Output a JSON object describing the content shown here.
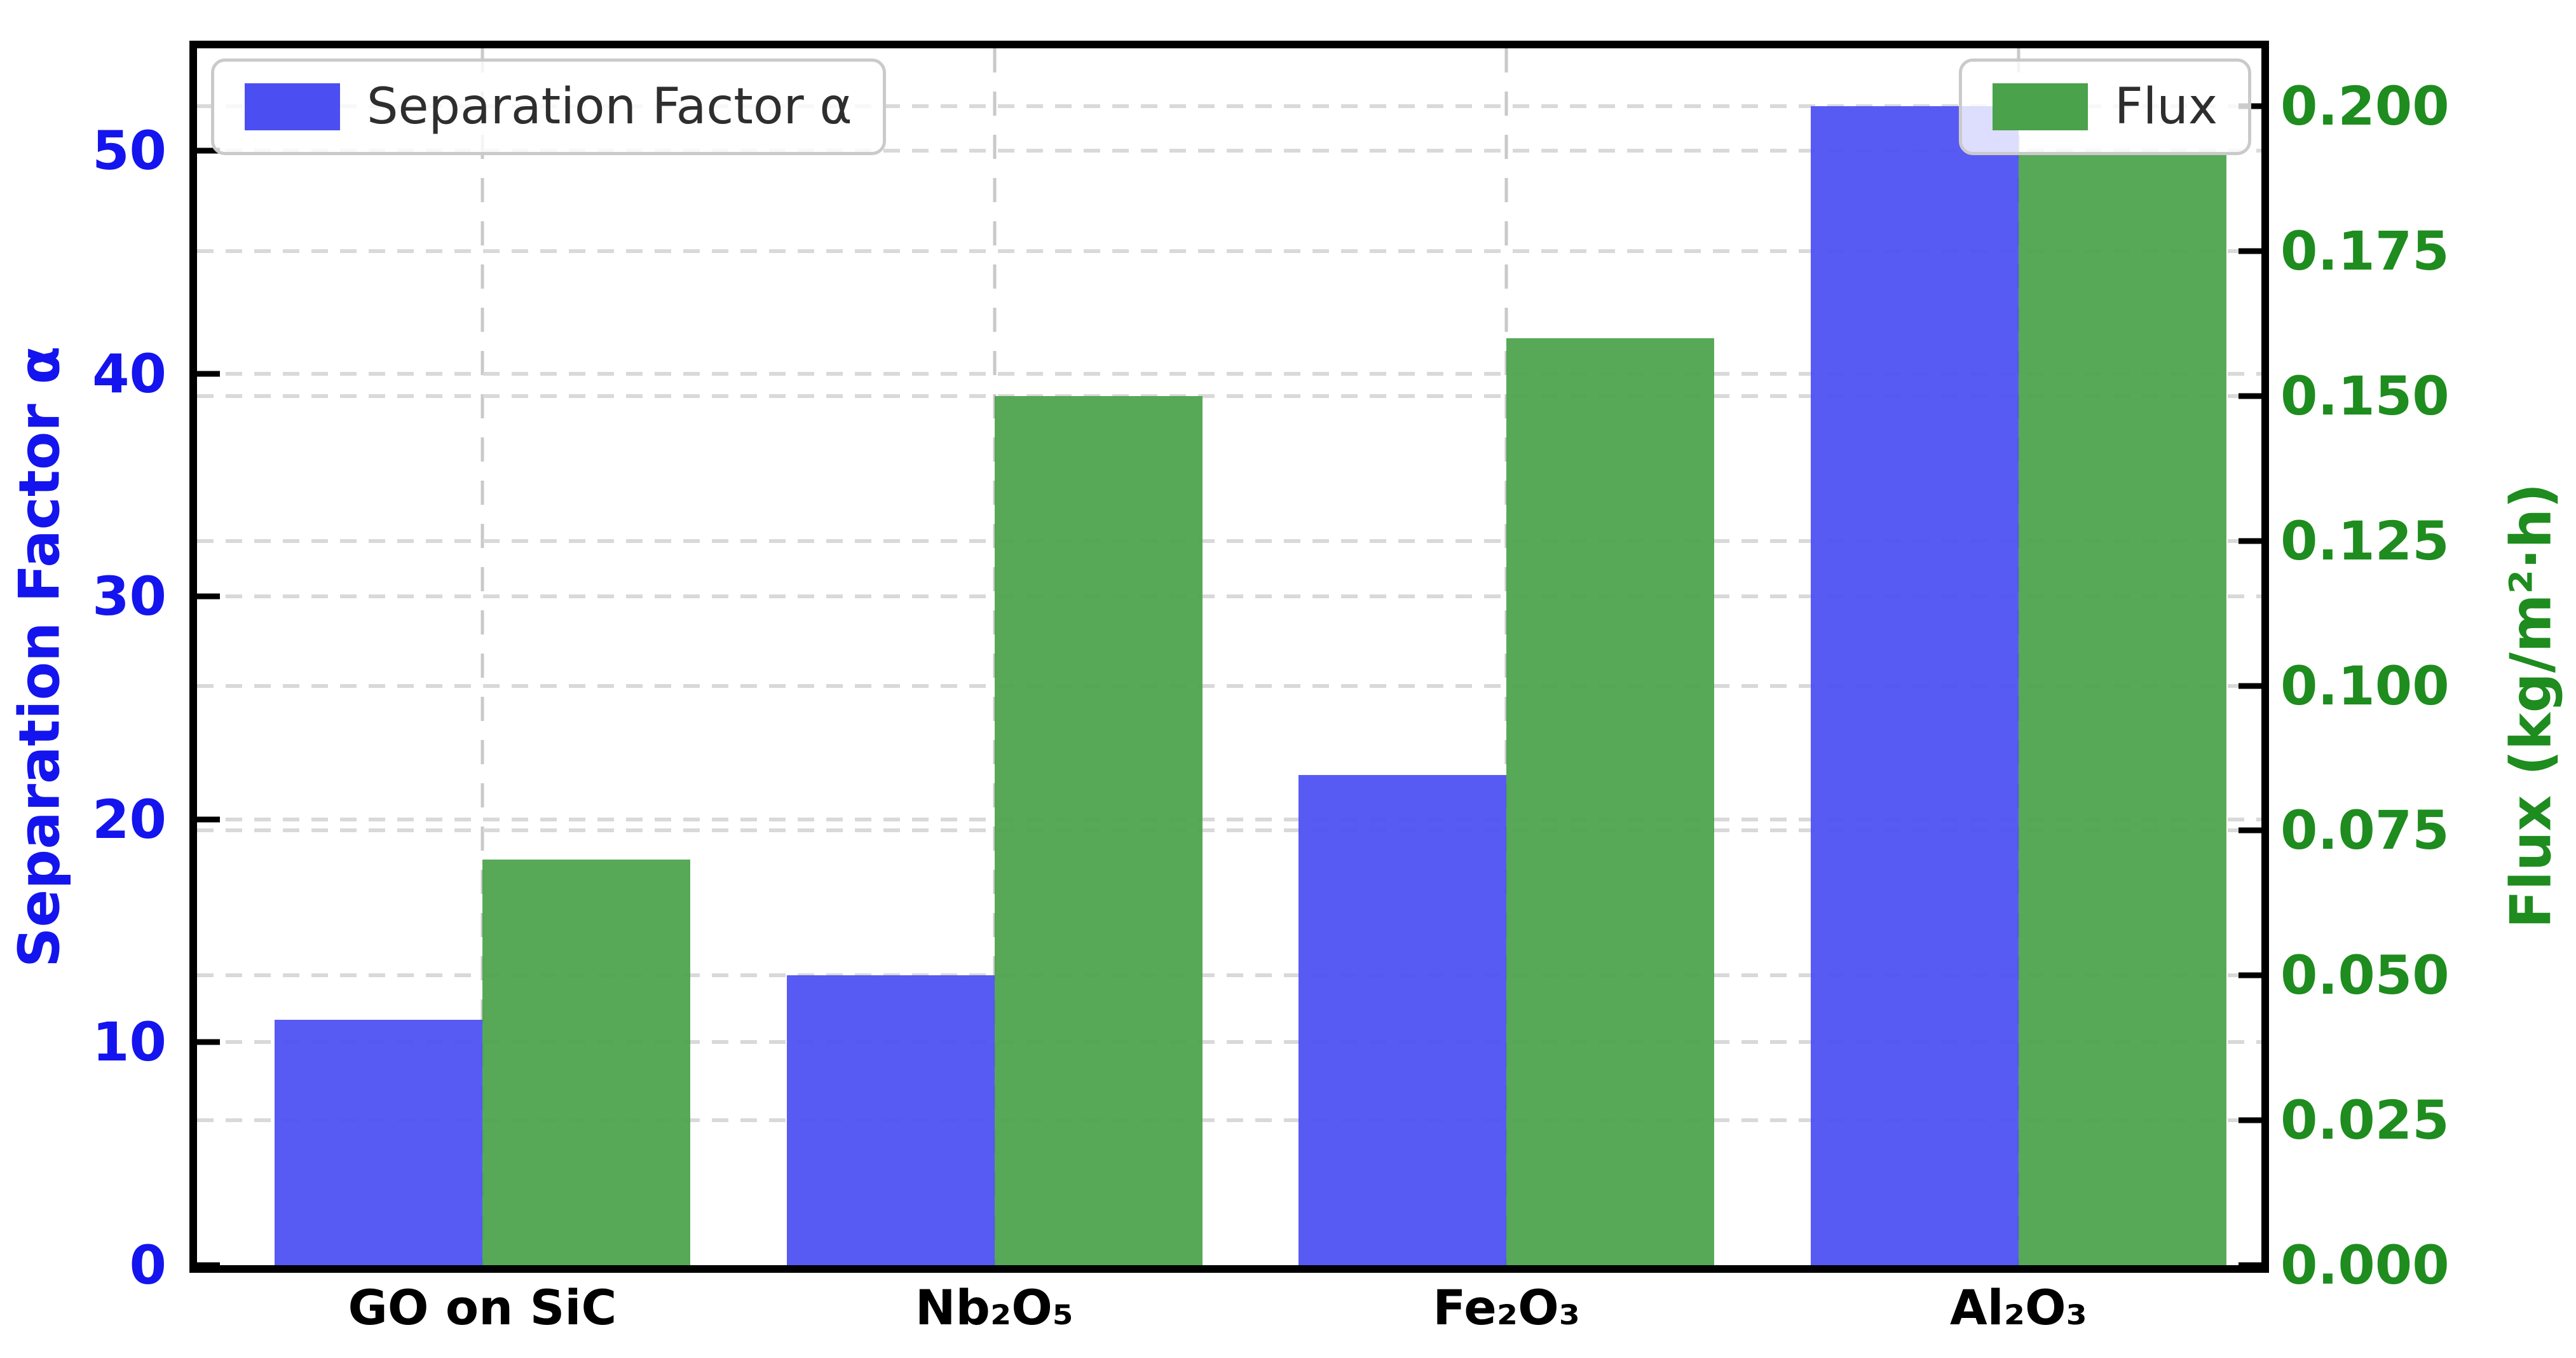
{
  "chart_data": {
    "type": "bar",
    "categories": [
      "GO on SiC",
      "Nb₂O₅",
      "Fe₂O₃",
      "Al₂O₃"
    ],
    "series": [
      {
        "name": "Separation Factor α",
        "axis": "left",
        "color": "#4b4ff2",
        "values": [
          11,
          13,
          22,
          52
        ]
      },
      {
        "name": "Flux",
        "axis": "right",
        "color": "#4aa24b",
        "values": [
          0.07,
          0.15,
          0.16,
          0.192
        ]
      }
    ],
    "left_axis": {
      "label": "Separation Factor α",
      "color": "#1414ee",
      "ticks": [
        0,
        10,
        20,
        30,
        40,
        50
      ],
      "tick_labels": [
        "0",
        "10",
        "20",
        "30",
        "40",
        "50"
      ],
      "range": [
        0,
        54.6
      ]
    },
    "right_axis": {
      "label": "Flux (kg/m²·h)",
      "color": "#1e8c1e",
      "ticks": [
        0,
        0.025,
        0.05,
        0.075,
        0.1,
        0.125,
        0.15,
        0.175,
        0.2
      ],
      "tick_labels": [
        "0.000",
        "0.025",
        "0.050",
        "0.075",
        "0.100",
        "0.125",
        "0.150",
        "0.175",
        "0.200"
      ],
      "range": [
        0,
        0.21
      ]
    },
    "legend": {
      "left_label": "Separation Factor α",
      "right_label": "Flux"
    },
    "grid": {
      "horizontal": true,
      "vertical": true,
      "style": "dashed",
      "color": "#d9d9d9"
    }
  }
}
